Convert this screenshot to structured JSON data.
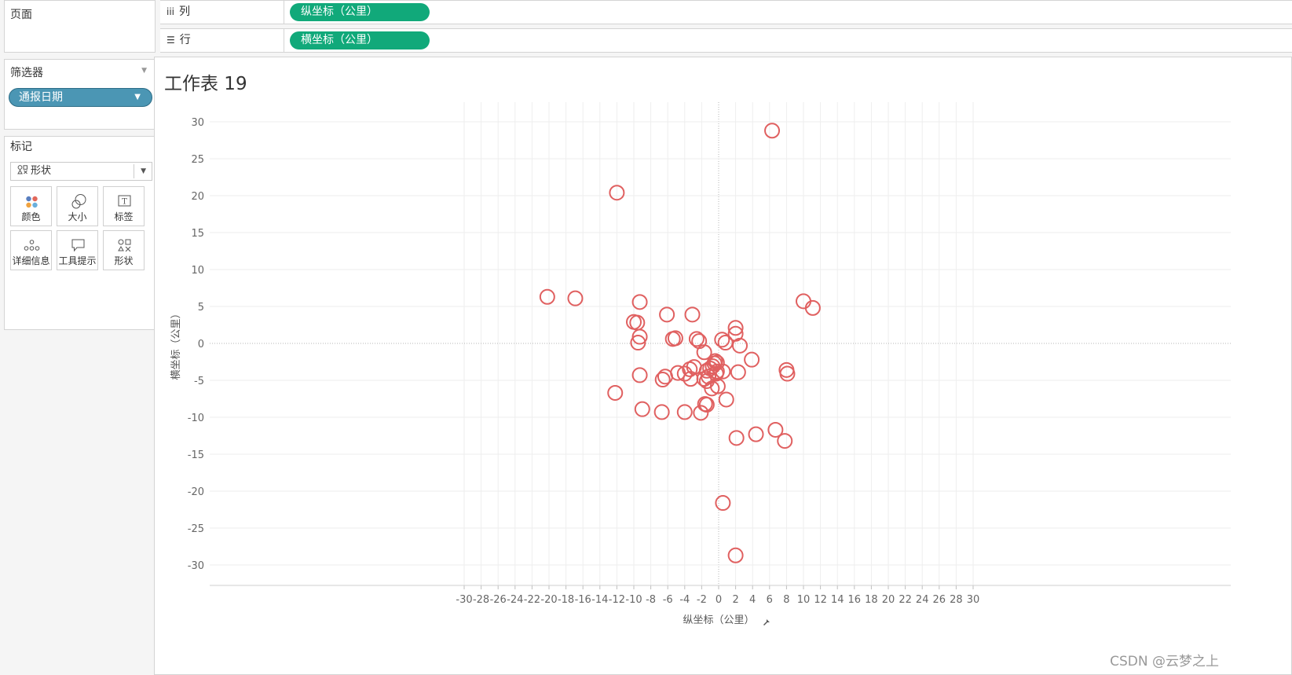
{
  "pages_panel": {
    "title": "页面"
  },
  "filters_panel": {
    "title": "筛选器",
    "filter_pill": "通报日期"
  },
  "marks_panel": {
    "title": "标记",
    "mark_type": "形状",
    "buttons": [
      {
        "label": "颜色",
        "icon": "color-icon"
      },
      {
        "label": "大小",
        "icon": "size-icon"
      },
      {
        "label": "标签",
        "icon": "label-icon"
      },
      {
        "label": "详细信息",
        "icon": "detail-icon"
      },
      {
        "label": "工具提示",
        "icon": "tooltip-icon"
      },
      {
        "label": "形状",
        "icon": "shape-icon"
      }
    ]
  },
  "shelves": {
    "columns": {
      "label": "列",
      "pill": "纵坐标（公里）"
    },
    "rows": {
      "label": "行",
      "pill": "横坐标（公里）"
    }
  },
  "sheet": {
    "title": "工作表 19"
  },
  "colors": {
    "accent_green": "#11a97a",
    "filter_blue": "#4b96b4",
    "mark_red": "#e06060"
  },
  "watermark": "CSDN @云梦之上",
  "chart_data": {
    "type": "scatter",
    "title": "工作表 19",
    "xlabel": "纵坐标（公里）",
    "ylabel": "横坐标（公里）",
    "xlim": [
      -31,
      31
    ],
    "ylim": [
      -33,
      32
    ],
    "xticks": [
      -30,
      -28,
      -26,
      -24,
      -22,
      -20,
      -18,
      -16,
      -14,
      -12,
      -10,
      -8,
      -6,
      -4,
      -2,
      0,
      2,
      4,
      6,
      8,
      10,
      12,
      14,
      16,
      18,
      20,
      22,
      24,
      26,
      28,
      30
    ],
    "yticks": [
      30,
      25,
      20,
      15,
      10,
      5,
      0,
      -5,
      -10,
      -15,
      -20,
      -25,
      -30
    ],
    "grid": true,
    "marker": "open-circle",
    "points": [
      {
        "x": 6.3,
        "y": 28.8
      },
      {
        "x": -12,
        "y": 20.4
      },
      {
        "x": -20.2,
        "y": 6.3
      },
      {
        "x": -16.9,
        "y": 6.1
      },
      {
        "x": 10,
        "y": 5.7
      },
      {
        "x": 11.1,
        "y": 4.8
      },
      {
        "x": -9.3,
        "y": 5.6
      },
      {
        "x": -6.1,
        "y": 3.9
      },
      {
        "x": -3.1,
        "y": 3.9
      },
      {
        "x": -10,
        "y": 2.9
      },
      {
        "x": -9.6,
        "y": 2.8
      },
      {
        "x": 2,
        "y": 2.1
      },
      {
        "x": -9.3,
        "y": 0.9
      },
      {
        "x": 2,
        "y": 1.3
      },
      {
        "x": -9.5,
        "y": 0.1
      },
      {
        "x": -5.4,
        "y": 0.6
      },
      {
        "x": -5.1,
        "y": 0.7
      },
      {
        "x": -2.6,
        "y": 0.6
      },
      {
        "x": -2.3,
        "y": 0.3
      },
      {
        "x": 0.4,
        "y": 0.5
      },
      {
        "x": 0.8,
        "y": 0.1
      },
      {
        "x": 2.5,
        "y": -0.3
      },
      {
        "x": -1.7,
        "y": -1.2
      },
      {
        "x": 3.9,
        "y": -2.2
      },
      {
        "x": -0.5,
        "y": -2.7
      },
      {
        "x": -0.2,
        "y": -2.6
      },
      {
        "x": -0.4,
        "y": -2.4
      },
      {
        "x": -0.7,
        "y": -3.1
      },
      {
        "x": -1,
        "y": -3.4
      },
      {
        "x": -2.9,
        "y": -3.2
      },
      {
        "x": -3.4,
        "y": -3.5
      },
      {
        "x": -1.4,
        "y": -3.7
      },
      {
        "x": 8,
        "y": -3.6
      },
      {
        "x": 8.1,
        "y": -4.1
      },
      {
        "x": -0.2,
        "y": -3.8
      },
      {
        "x": 0.5,
        "y": -3.8
      },
      {
        "x": -0.3,
        "y": -4.1
      },
      {
        "x": 2.3,
        "y": -3.9
      },
      {
        "x": -4.8,
        "y": -4
      },
      {
        "x": -4,
        "y": -4.1
      },
      {
        "x": -6.3,
        "y": -4.5
      },
      {
        "x": -6.6,
        "y": -4.9
      },
      {
        "x": -9.3,
        "y": -4.3
      },
      {
        "x": -3.3,
        "y": -4.8
      },
      {
        "x": -1.2,
        "y": -4.5
      },
      {
        "x": -1.7,
        "y": -4.8
      },
      {
        "x": -1.4,
        "y": -5.1
      },
      {
        "x": -0.8,
        "y": -6.1
      },
      {
        "x": -0.1,
        "y": -5.8
      },
      {
        "x": -12.2,
        "y": -6.7
      },
      {
        "x": 0.9,
        "y": -7.6
      },
      {
        "x": -1.6,
        "y": -8.2
      },
      {
        "x": -1.4,
        "y": -8.3
      },
      {
        "x": -9,
        "y": -8.9
      },
      {
        "x": -6.7,
        "y": -9.3
      },
      {
        "x": -4,
        "y": -9.3
      },
      {
        "x": -2.1,
        "y": -9.4
      },
      {
        "x": 6.7,
        "y": -11.7
      },
      {
        "x": 4.4,
        "y": -12.3
      },
      {
        "x": 2.1,
        "y": -12.8
      },
      {
        "x": 7.8,
        "y": -13.2
      },
      {
        "x": 0.5,
        "y": -21.6
      },
      {
        "x": 2,
        "y": -28.7
      }
    ]
  }
}
